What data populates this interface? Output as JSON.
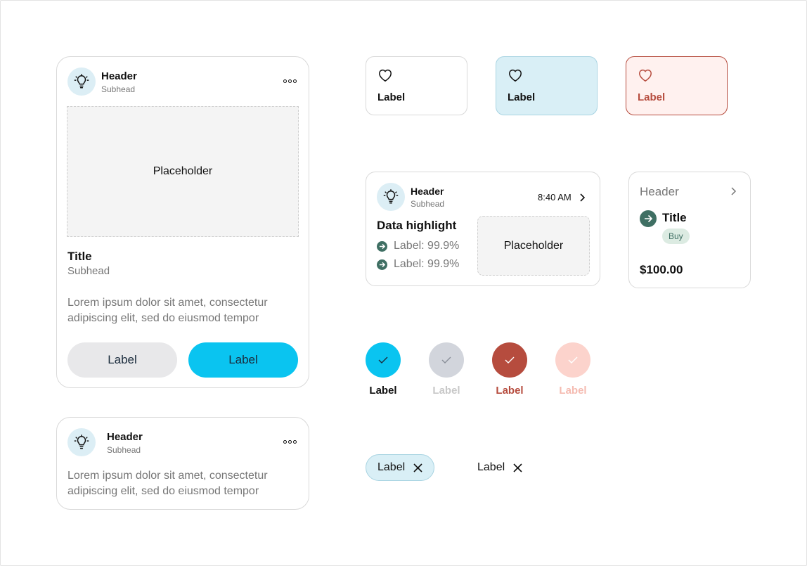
{
  "large_card": {
    "header": "Header",
    "subhead": "Subhead",
    "placeholder": "Placeholder",
    "title": "Title",
    "subtitle": "Subhead",
    "body": "Lorem ipsum dolor sit amet, consectetur adipiscing elit, sed do eiusmod tempor",
    "secondary_button": "Label",
    "primary_button": "Label"
  },
  "small_card": {
    "header": "Header",
    "subhead": "Subhead",
    "body": "Lorem ipsum dolor sit amet, consectetur adipiscing elit, sed do eiusmod tempor"
  },
  "tiles": [
    {
      "label": "Label",
      "state": "default"
    },
    {
      "label": "Label",
      "state": "selected"
    },
    {
      "label": "Label",
      "state": "error"
    }
  ],
  "notification_card": {
    "header": "Header",
    "subhead": "Subhead",
    "time": "8:40 AM",
    "highlight_title": "Data highlight",
    "items": [
      "Label: 99.9%",
      "Label: 99.9%"
    ],
    "placeholder": "Placeholder"
  },
  "product_card": {
    "header": "Header",
    "title": "Title",
    "badge": "Buy",
    "price": "$100.00"
  },
  "checks": [
    {
      "label": "Label",
      "state": "checked"
    },
    {
      "label": "Label",
      "state": "disabled"
    },
    {
      "label": "Label",
      "state": "error"
    },
    {
      "label": "Label",
      "state": "error-disabled"
    }
  ],
  "chips": [
    {
      "label": "Label",
      "style": "filled"
    },
    {
      "label": "Label",
      "style": "plain"
    }
  ],
  "colors": {
    "accent": "#0ac4f0",
    "accent_light": "#d9eff6",
    "error": "#b64c3e",
    "error_light": "#fff1ef",
    "secondary_button": "#e8e8ea",
    "success": "#3f6f63"
  }
}
